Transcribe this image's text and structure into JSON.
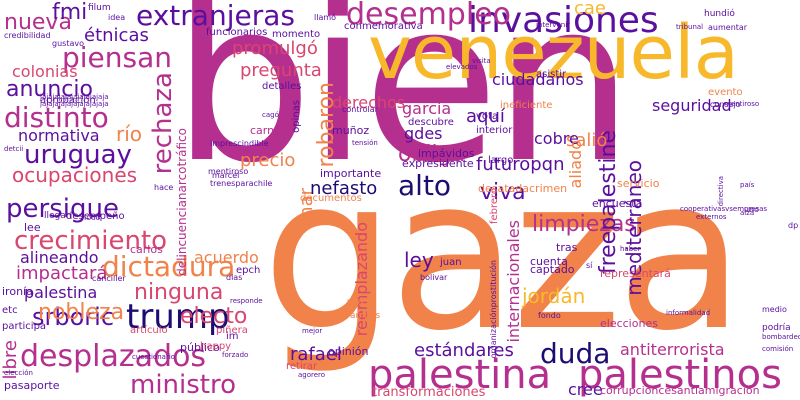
{
  "palette": {
    "purple": "#5b0f9e",
    "magenta": "#b52f8f",
    "orange": "#f0824a",
    "yellow": "#f7b92b",
    "pink": "#d9466f",
    "navy": "#1f0c73",
    "background": "#ffffff"
  },
  "words": [
    {
      "text": "bien",
      "color": "magenta"
    },
    {
      "text": "gaza",
      "color": "orange"
    },
    {
      "text": "venezuela",
      "color": "yellow"
    },
    {
      "text": "palestina",
      "color": "magenta"
    },
    {
      "text": "palestinos",
      "color": "magenta"
    },
    {
      "text": "invasiones",
      "color": "purple"
    },
    {
      "text": "desempleo",
      "color": "magenta"
    },
    {
      "text": "extranjeras",
      "color": "purple"
    },
    {
      "text": "trump",
      "color": "navy"
    },
    {
      "text": "desplazados",
      "color": "magenta"
    },
    {
      "text": "ministro",
      "color": "magenta"
    },
    {
      "text": "dictadura",
      "color": "orange"
    },
    {
      "text": "crecimiento",
      "color": "pink"
    },
    {
      "text": "ninguna",
      "color": "pink"
    },
    {
      "text": "persigue",
      "color": "purple"
    },
    {
      "text": "uruguay",
      "color": "purple"
    },
    {
      "text": "distinto",
      "color": "magenta"
    },
    {
      "text": "anuncio",
      "color": "purple"
    },
    {
      "text": "piensan",
      "color": "magenta"
    },
    {
      "text": "nueva",
      "color": "magenta"
    },
    {
      "text": "fmi",
      "color": "purple"
    },
    {
      "text": "alto",
      "color": "navy"
    },
    {
      "text": "duda",
      "color": "navy"
    },
    {
      "text": "srboric",
      "color": "purple"
    },
    {
      "text": "rechaza",
      "color": "magenta"
    },
    {
      "text": "robaron",
      "color": "orange"
    },
    {
      "text": "obliga",
      "color": "magenta"
    },
    {
      "text": "viva",
      "color": "purple"
    },
    {
      "text": "futuropqn",
      "color": "purple"
    },
    {
      "text": "limpiezas",
      "color": "magenta"
    },
    {
      "text": "freepalestine",
      "color": "purple"
    },
    {
      "text": "mediterráneo",
      "color": "purple"
    },
    {
      "text": "jordán",
      "color": "yellow"
    },
    {
      "text": "ley",
      "color": "purple"
    },
    {
      "text": "nobleza",
      "color": "orange"
    },
    {
      "text": "electo",
      "color": "pink"
    },
    {
      "text": "ocupaciones",
      "color": "pink"
    },
    {
      "text": "río",
      "color": "orange"
    },
    {
      "text": "étnicas",
      "color": "purple"
    },
    {
      "text": "colonias",
      "color": "pink"
    },
    {
      "text": "normativa",
      "color": "purple"
    },
    {
      "text": "precio",
      "color": "orange"
    },
    {
      "text": "mar",
      "color": "orange"
    },
    {
      "text": "nefasto",
      "color": "navy"
    },
    {
      "text": "pregunta",
      "color": "pink"
    },
    {
      "text": "promulgó",
      "color": "pink"
    },
    {
      "text": "cae",
      "color": "yellow"
    },
    {
      "text": "aquí",
      "color": "purple"
    },
    {
      "text": "salió",
      "color": "orange"
    },
    {
      "text": "derechos",
      "color": "pink"
    },
    {
      "text": "ciudadanos",
      "color": "purple"
    },
    {
      "text": "seguridad",
      "color": "purple"
    },
    {
      "text": "garcia",
      "color": "magenta"
    },
    {
      "text": "gdes",
      "color": "purple"
    },
    {
      "text": "cobre",
      "color": "purple"
    },
    {
      "text": "aliado",
      "color": "orange"
    },
    {
      "text": "rafael",
      "color": "purple"
    },
    {
      "text": "estándares",
      "color": "purple"
    },
    {
      "text": "antiterrorista",
      "color": "magenta"
    },
    {
      "text": "reemplazando",
      "color": "pink"
    },
    {
      "text": "internacionales",
      "color": "magenta"
    },
    {
      "text": "transformaciones",
      "color": "pink"
    },
    {
      "text": "corrupcióncesantiamigración",
      "color": "magenta"
    },
    {
      "text": "cree",
      "color": "purple"
    },
    {
      "text": "libre",
      "color": "magenta"
    },
    {
      "text": "alineando",
      "color": "purple"
    },
    {
      "text": "impactará",
      "color": "magenta"
    },
    {
      "text": "acuerdo",
      "color": "orange"
    },
    {
      "text": "palestina",
      "color": "purple"
    },
    {
      "text": "delincuencianarcotráfico",
      "color": "magenta"
    },
    {
      "text": "pasaporte",
      "color": "purple"
    },
    {
      "text": "opinión",
      "color": "purple"
    },
    {
      "text": "captado",
      "color": "purple"
    },
    {
      "text": "cuenta",
      "color": "purple"
    },
    {
      "text": "encuesta",
      "color": "purple"
    },
    {
      "text": "tras",
      "color": "purple"
    },
    {
      "text": "desatadacrimen",
      "color": "orange"
    },
    {
      "text": "servicio",
      "color": "orange"
    },
    {
      "text": "representará",
      "color": "pink"
    },
    {
      "text": "elecciones",
      "color": "magenta"
    },
    {
      "text": "público",
      "color": "purple"
    },
    {
      "text": "expresidente",
      "color": "purple"
    },
    {
      "text": "importante",
      "color": "purple"
    },
    {
      "text": "impávidos",
      "color": "purple"
    },
    {
      "text": "muñoz",
      "color": "purple"
    },
    {
      "text": "carné",
      "color": "magenta"
    },
    {
      "text": "desempeño",
      "color": "purple"
    },
    {
      "text": "lee",
      "color": "purple"
    },
    {
      "text": "carlos",
      "color": "magenta"
    },
    {
      "text": "juan",
      "color": "purple"
    },
    {
      "text": "ironía",
      "color": "purple"
    },
    {
      "text": "etc",
      "color": "purple"
    },
    {
      "text": "participa",
      "color": "purple"
    },
    {
      "text": "artículo",
      "color": "pink"
    },
    {
      "text": "piñera",
      "color": "pink"
    },
    {
      "text": "happy",
      "color": "pink"
    },
    {
      "text": "retirar",
      "color": "pink"
    },
    {
      "text": "acá",
      "color": "orange"
    },
    {
      "text": "ambos",
      "color": "orange"
    },
    {
      "text": "im",
      "color": "purple"
    },
    {
      "text": "vota",
      "color": "purple"
    },
    {
      "text": "largo",
      "color": "purple"
    },
    {
      "text": "interior",
      "color": "purple"
    },
    {
      "text": "descubre",
      "color": "purple"
    },
    {
      "text": "funcionarios",
      "color": "purple"
    },
    {
      "text": "momento",
      "color": "purple"
    },
    {
      "text": "detalles",
      "color": "purple"
    },
    {
      "text": "opinas",
      "color": "purple"
    },
    {
      "text": "conmemorativa",
      "color": "purple"
    },
    {
      "text": "ineficiente",
      "color": "orange"
    },
    {
      "text": "asistir",
      "color": "purple"
    },
    {
      "text": "evento",
      "color": "orange"
    },
    {
      "text": "consejo",
      "color": "purple"
    },
    {
      "text": "aprobación",
      "color": "purple"
    },
    {
      "text": "filum",
      "color": "purple"
    },
    {
      "text": "idea",
      "color": "purple"
    },
    {
      "text": "llamó",
      "color": "purple"
    },
    {
      "text": "hundió",
      "color": "purple"
    },
    {
      "text": "aumentar",
      "color": "purple"
    },
    {
      "text": "credibilidad",
      "color": "purple"
    },
    {
      "text": "gustavo",
      "color": "purple"
    },
    {
      "text": "jajajajajajajajajajaja",
      "color": "purple"
    },
    {
      "text": "jajajajajajajajajajaja",
      "color": "purple"
    },
    {
      "text": "controlar",
      "color": "purple"
    },
    {
      "text": "detcii",
      "color": "purple"
    },
    {
      "text": "imprescindible",
      "color": "purple"
    },
    {
      "text": "tensión",
      "color": "purple"
    },
    {
      "text": "mentiroso",
      "color": "purple"
    },
    {
      "text": "marcel",
      "color": "purple"
    },
    {
      "text": "trenesparachile",
      "color": "purple"
    },
    {
      "text": "hace",
      "color": "purple"
    },
    {
      "text": "llegan",
      "color": "purple"
    },
    {
      "text": "loco",
      "color": "purple"
    },
    {
      "text": "documentos",
      "color": "orange"
    },
    {
      "text": "febrero",
      "color": "pink"
    },
    {
      "text": "podría",
      "color": "purple"
    },
    {
      "text": "medio",
      "color": "purple"
    },
    {
      "text": "comisión",
      "color": "purple"
    },
    {
      "text": "epch",
      "color": "purple"
    },
    {
      "text": "canciller",
      "color": "purple"
    },
    {
      "text": "dias",
      "color": "purple"
    },
    {
      "text": "bolivar",
      "color": "purple"
    },
    {
      "text": "responde",
      "color": "purple"
    },
    {
      "text": "cuestionario",
      "color": "purple"
    },
    {
      "text": "forzado",
      "color": "purple"
    },
    {
      "text": "elección",
      "color": "purple"
    },
    {
      "text": "agorero",
      "color": "purple"
    },
    {
      "text": "fondo",
      "color": "purple"
    },
    {
      "text": "informalidad",
      "color": "purple"
    },
    {
      "text": "cooperativasvsempresas",
      "color": "purple"
    },
    {
      "text": "externos",
      "color": "purple"
    },
    {
      "text": "directiva",
      "color": "purple"
    },
    {
      "text": "alza",
      "color": "purple"
    },
    {
      "text": "país",
      "color": "purple"
    },
    {
      "text": "intervenir",
      "color": "purple"
    },
    {
      "text": "elevados",
      "color": "purple"
    },
    {
      "text": "visita",
      "color": "purple"
    },
    {
      "text": "organizaciónprostitución",
      "color": "purple"
    },
    {
      "text": "mentiroso",
      "color": "purple"
    },
    {
      "text": "uno",
      "color": "purple"
    },
    {
      "text": "cagó",
      "color": "purple"
    },
    {
      "text": "dp",
      "color": "purple"
    },
    {
      "text": "mejor",
      "color": "purple"
    },
    {
      "text": "tribunal",
      "color": "purple"
    },
    {
      "text": "haber",
      "color": "purple"
    },
    {
      "text": "bombardeos",
      "color": "purple"
    },
    {
      "text": "sí",
      "color": "purple"
    }
  ]
}
